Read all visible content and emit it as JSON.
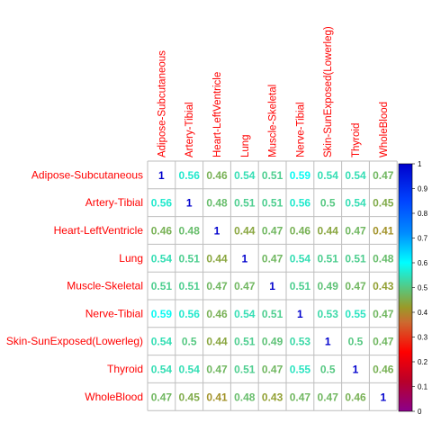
{
  "chart_data": {
    "type": "heatmap",
    "labels": [
      "Adipose-Subcutaneous",
      "Artery-Tibial",
      "Heart-LeftVentricle",
      "Lung",
      "Muscle-Skeletal",
      "Nerve-Tibial",
      "Skin-SunExposed(Lowerleg)",
      "Thyroid",
      "WholeBlood"
    ],
    "values": [
      [
        1,
        0.56,
        0.46,
        0.54,
        0.51,
        0.59,
        0.54,
        0.54,
        0.47
      ],
      [
        0.56,
        1,
        0.48,
        0.51,
        0.51,
        0.56,
        0.5,
        0.54,
        0.45
      ],
      [
        0.46,
        0.48,
        1,
        0.44,
        0.47,
        0.46,
        0.44,
        0.47,
        0.41
      ],
      [
        0.54,
        0.51,
        0.44,
        1,
        0.47,
        0.54,
        0.51,
        0.51,
        0.48
      ],
      [
        0.51,
        0.51,
        0.47,
        0.47,
        1,
        0.51,
        0.49,
        0.47,
        0.43
      ],
      [
        0.59,
        0.56,
        0.46,
        0.54,
        0.51,
        1,
        0.53,
        0.55,
        0.47
      ],
      [
        0.54,
        0.5,
        0.44,
        0.51,
        0.49,
        0.53,
        1,
        0.5,
        0.47
      ],
      [
        0.54,
        0.54,
        0.47,
        0.51,
        0.47,
        0.55,
        0.5,
        1,
        0.46
      ],
      [
        0.47,
        0.45,
        0.41,
        0.48,
        0.43,
        0.47,
        0.47,
        0.46,
        1
      ]
    ],
    "value_labels": [
      [
        "1",
        "0.56",
        "0.46",
        "0.54",
        "0.51",
        "0.59",
        "0.54",
        "0.54",
        "0.47"
      ],
      [
        "0.56",
        "1",
        "0.48",
        "0.51",
        "0.51",
        "0.56",
        "0.5",
        "0.54",
        "0.45"
      ],
      [
        "0.46",
        "0.48",
        "1",
        "0.44",
        "0.47",
        "0.46",
        "0.44",
        "0.47",
        "0.41"
      ],
      [
        "0.54",
        "0.51",
        "0.44",
        "1",
        "0.47",
        "0.54",
        "0.51",
        "0.51",
        "0.48"
      ],
      [
        "0.51",
        "0.51",
        "0.47",
        "0.47",
        "1",
        "0.51",
        "0.49",
        "0.47",
        "0.43"
      ],
      [
        "0.59",
        "0.56",
        "0.46",
        "0.54",
        "0.51",
        "1",
        "0.53",
        "0.55",
        "0.47"
      ],
      [
        "0.54",
        "0.5",
        "0.44",
        "0.51",
        "0.49",
        "0.53",
        "1",
        "0.5",
        "0.47"
      ],
      [
        "0.54",
        "0.54",
        "0.47",
        "0.51",
        "0.47",
        "0.55",
        "0.5",
        "1",
        "0.46"
      ],
      [
        "0.47",
        "0.45",
        "0.41",
        "0.48",
        "0.43",
        "0.47",
        "0.47",
        "0.46",
        "1"
      ]
    ],
    "colorbar": {
      "range": [
        0,
        1
      ],
      "ticks": [
        0,
        0.1,
        0.2,
        0.3,
        0.4,
        0.5,
        0.6,
        0.7,
        0.8,
        0.9,
        1
      ],
      "tick_labels": [
        "0",
        "0.1",
        "0.2",
        "0.3",
        "0.4",
        "0.5",
        "0.6",
        "0.7",
        "0.8",
        "0.9",
        "1"
      ],
      "stops": [
        {
          "value": 0,
          "color": "#8b008b"
        },
        {
          "value": 0.12,
          "color": "#b8002a"
        },
        {
          "value": 0.24,
          "color": "#ff0000"
        },
        {
          "value": 0.36,
          "color": "#cc6a30"
        },
        {
          "value": 0.42,
          "color": "#9a9a28"
        },
        {
          "value": 0.5,
          "color": "#56c882"
        },
        {
          "value": 0.6,
          "color": "#00ffff"
        },
        {
          "value": 0.72,
          "color": "#008cff"
        },
        {
          "value": 0.85,
          "color": "#0044ff"
        },
        {
          "value": 1,
          "color": "#0000cd"
        }
      ]
    },
    "colors": {
      "label_color": "#ff0000",
      "grid_color": "#bebebe"
    }
  }
}
